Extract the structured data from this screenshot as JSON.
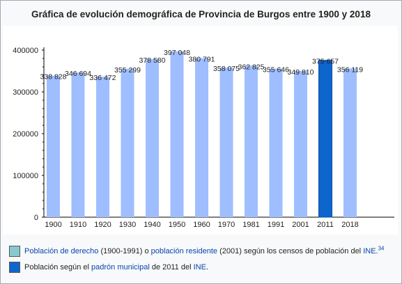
{
  "chart_data": {
    "type": "bar",
    "title": "Gráfica de evolución demográfica de Provincia de Burgos entre 1900 y 2018",
    "categories": [
      "1900",
      "1910",
      "1920",
      "1930",
      "1940",
      "1950",
      "1960",
      "1970",
      "1981",
      "1991",
      "2001",
      "2011",
      "2018"
    ],
    "values": [
      338828,
      346694,
      336472,
      355299,
      378580,
      397048,
      380791,
      358075,
      362825,
      355646,
      349810,
      375657,
      356119
    ],
    "value_labels": [
      "338 828",
      "346 694",
      "336 472",
      "355 299",
      "378 580",
      "397 048",
      "380 791",
      "358 075",
      "362 825",
      "355 646",
      "349 810",
      "375 657",
      "356 119"
    ],
    "highlight_category": "2011",
    "ylim": [
      0,
      400000
    ],
    "yticks": [
      0,
      100000,
      200000,
      300000,
      400000
    ],
    "ytick_labels": [
      "0",
      "100000",
      "200000",
      "300000",
      "400000"
    ],
    "grid": false,
    "colors": {
      "bar": "#9fbeff",
      "highlight": "#0c66cc"
    }
  },
  "legend": [
    {
      "color": "#88c8d0",
      "parts": [
        {
          "text": "Población de derecho",
          "link": true
        },
        {
          "text": " (1900-1991) o ",
          "link": false
        },
        {
          "text": "población residente",
          "link": true
        },
        {
          "text": " (2001) según los censos de población del ",
          "link": false
        },
        {
          "text": "INE",
          "link": true
        },
        {
          "text": ".",
          "link": false
        },
        {
          "text": "34",
          "link": true,
          "sup": true
        }
      ]
    },
    {
      "color": "#0c66cc",
      "parts": [
        {
          "text": "Población según el ",
          "link": false
        },
        {
          "text": "padrón municipal",
          "link": true
        },
        {
          "text": " de 2011 del ",
          "link": false
        },
        {
          "text": "INE",
          "link": true
        },
        {
          "text": ".",
          "link": false
        }
      ]
    }
  ]
}
